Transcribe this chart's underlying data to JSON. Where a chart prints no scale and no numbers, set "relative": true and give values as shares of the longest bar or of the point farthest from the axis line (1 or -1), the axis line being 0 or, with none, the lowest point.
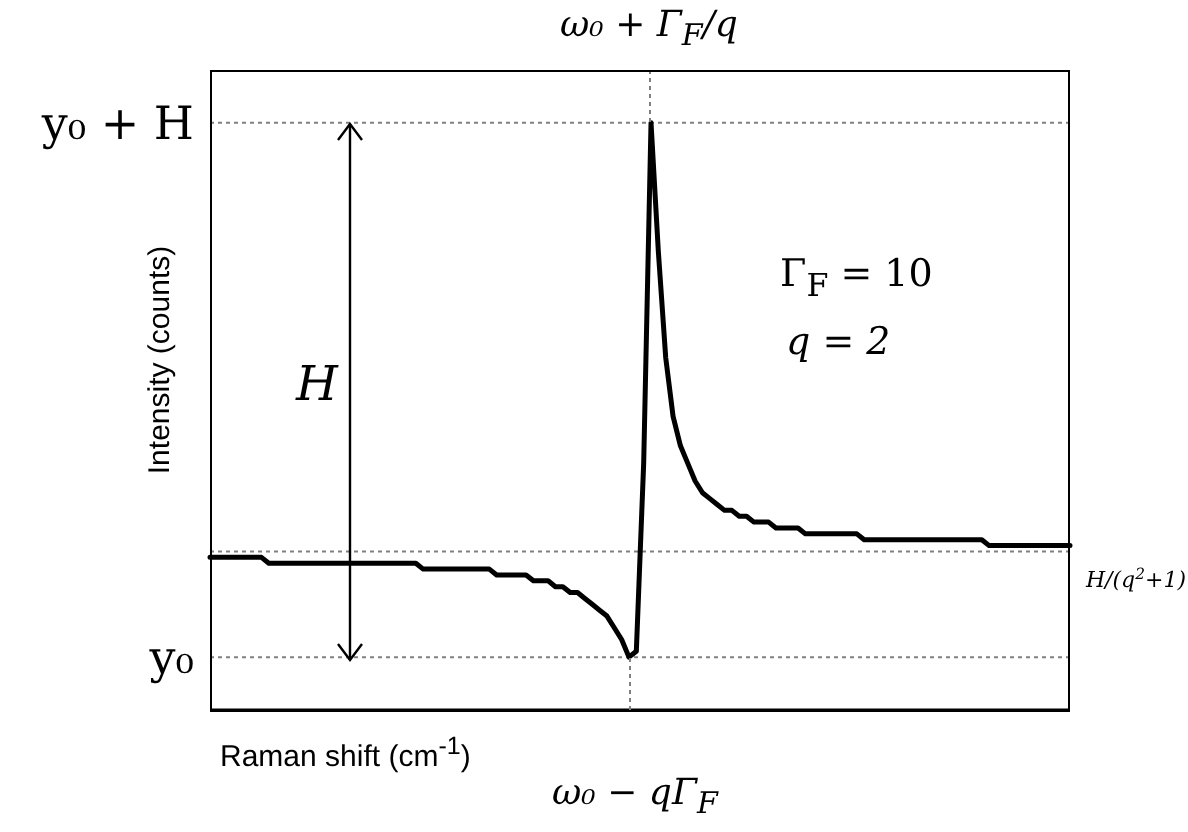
{
  "chart_data": {
    "type": "line",
    "relative": true,
    "xlabel": "Raman shift (cm$^{-1}$)",
    "ylabel": "Intensity (counts)",
    "color": "#000000",
    "grid": false,
    "legend": false,
    "marker": "none",
    "line_style": "solid",
    "categories": [
      null,
      null,
      null,
      null,
      null,
      null,
      null,
      null,
      null,
      null,
      null,
      null,
      null,
      null,
      null,
      null,
      null,
      null,
      null,
      null,
      null,
      null,
      null,
      null,
      null,
      null,
      null,
      null,
      null,
      null,
      null,
      null,
      null,
      null,
      null,
      null,
      null,
      null,
      null,
      null,
      null,
      null,
      null,
      null,
      null,
      null,
      null,
      null,
      null,
      null,
      null,
      null,
      null,
      null,
      null,
      null,
      null,
      null,
      null,
      null,
      null,
      null,
      null,
      null,
      null,
      null,
      null,
      null,
      null,
      null,
      null,
      null,
      null,
      null,
      null,
      null,
      null,
      null,
      null,
      null,
      null,
      null,
      null,
      null,
      null,
      null,
      null,
      null,
      null,
      null,
      null,
      null,
      null,
      null,
      null,
      null,
      null,
      null,
      null,
      null,
      null,
      null,
      null,
      null,
      null,
      null,
      null,
      null,
      null,
      null,
      null,
      null,
      null,
      null,
      null,
      null,
      null,
      null
    ],
    "values": [
      0.26,
      0.26,
      0.26,
      0.26,
      0.26,
      0.26,
      0.26,
      0.26,
      0.25,
      0.25,
      0.25,
      0.25,
      0.25,
      0.25,
      0.25,
      0.25,
      0.25,
      0.25,
      0.25,
      0.25,
      0.25,
      0.25,
      0.25,
      0.25,
      0.25,
      0.25,
      0.25,
      0.25,
      0.25,
      0.24,
      0.24,
      0.24,
      0.24,
      0.24,
      0.24,
      0.24,
      0.24,
      0.24,
      0.24,
      0.23,
      0.23,
      0.23,
      0.23,
      0.23,
      0.22,
      0.22,
      0.22,
      0.21,
      0.21,
      0.2,
      0.2,
      0.19,
      0.18,
      0.17,
      0.16,
      0.14,
      0.12,
      0.09,
      0.1,
      0.42,
      1.0,
      0.78,
      0.6,
      0.5,
      0.45,
      0.42,
      0.39,
      0.37,
      0.36,
      0.35,
      0.34,
      0.34,
      0.33,
      0.33,
      0.32,
      0.32,
      0.32,
      0.31,
      0.31,
      0.31,
      0.31,
      0.3,
      0.3,
      0.3,
      0.3,
      0.3,
      0.3,
      0.3,
      0.3,
      0.29,
      0.29,
      0.29,
      0.29,
      0.29,
      0.29,
      0.29,
      0.29,
      0.29,
      0.29,
      0.29,
      0.29,
      0.29,
      0.29,
      0.29,
      0.29,
      0.29,
      0.28,
      0.28,
      0.28,
      0.28,
      0.28,
      0.28,
      0.28,
      0.28,
      0.28,
      0.28,
      0.28,
      0.28
    ],
    "ref_lines": [
      {
        "axis": "y",
        "value": 1.0,
        "label": "y₀ + H",
        "color": "#808080",
        "line_style": "dotted"
      },
      {
        "axis": "y",
        "value": 0.09,
        "label": "y₀",
        "color": "#808080",
        "line_style": "dotted"
      },
      {
        "axis": "y",
        "value": 0.27,
        "label": "H/(q$^{2}$+1)",
        "color": "#808080",
        "line_style": "dotted"
      }
    ],
    "annotations": [
      "H",
      "Γ$_{F}$ = 10",
      "q = 2",
      "ω₀ + Γ$_{F}$/q",
      "ω₀ − qΓ$_{F}$"
    ]
  }
}
